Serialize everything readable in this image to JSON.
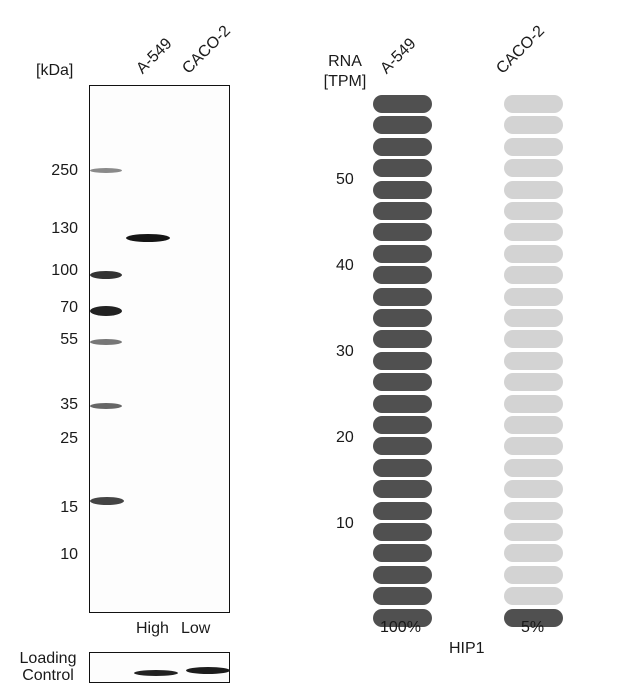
{
  "western_blot": {
    "kda_label": "[kDa]",
    "lanes": [
      "A-549",
      "CACO-2"
    ],
    "mw_markers": [
      "250",
      "130",
      "100",
      "70",
      "55",
      "35",
      "25",
      "15",
      "10"
    ],
    "expression_labels": [
      "High",
      "Low"
    ],
    "loading_control_label": "Loading\nControl"
  },
  "rna_chart": {
    "axis_label": "RNA\n[TPM]",
    "samples": [
      "A-549",
      "CACO-2"
    ],
    "tick_labels": [
      "50",
      "40",
      "30",
      "20",
      "10"
    ],
    "percent_labels": [
      "100%",
      "5%"
    ],
    "gene": "HIP1"
  },
  "chart_data": {
    "type": "bar",
    "categories": [
      "A-549",
      "CACO-2"
    ],
    "values": [
      100,
      5
    ],
    "segments_total": 25,
    "ylabel": "RNA [TPM]",
    "xlabel": "HIP1",
    "colors": {
      "filled": "#505050",
      "empty": "#d3d3d3"
    }
  }
}
